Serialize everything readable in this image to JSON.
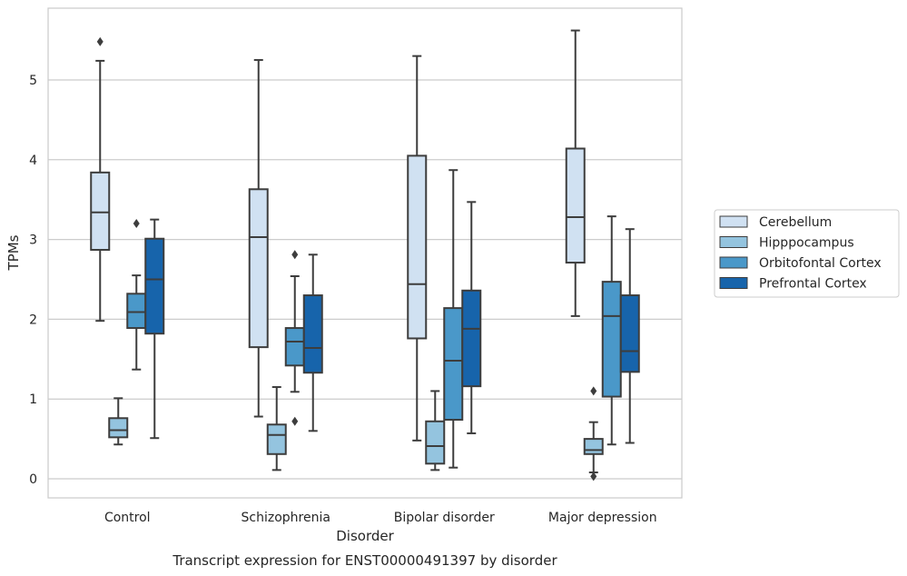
{
  "chart_data": {
    "type": "boxplot",
    "title": "Transcript expression for ENST00000491397 by disorder",
    "xlabel": "Disorder",
    "ylabel": "TPMs",
    "ylim": [
      -0.23,
      5.9
    ],
    "yticks": [
      0,
      1,
      2,
      3,
      4,
      5
    ],
    "grid": "horizontal",
    "legend_position": "right",
    "categories": [
      "Control",
      "Schizophrenia",
      "Bipolar disorder",
      "Major depression"
    ],
    "series": [
      {
        "name": "Cerebellum",
        "color": "#d0e1f2",
        "boxes": [
          {
            "min": 1.98,
            "q1": 2.87,
            "median": 3.34,
            "q3": 3.84,
            "max": 5.24,
            "outliers": [
              5.48
            ]
          },
          {
            "min": 0.78,
            "q1": 1.65,
            "median": 3.03,
            "q3": 3.63,
            "max": 5.25,
            "outliers": []
          },
          {
            "min": 0.48,
            "q1": 1.76,
            "median": 2.44,
            "q3": 4.05,
            "max": 5.3,
            "outliers": []
          },
          {
            "min": 2.04,
            "q1": 2.71,
            "median": 3.28,
            "q3": 4.14,
            "max": 5.62,
            "outliers": []
          }
        ]
      },
      {
        "name": "Hipppocampus",
        "color": "#94c4df",
        "boxes": [
          {
            "min": 0.43,
            "q1": 0.52,
            "median": 0.61,
            "q3": 0.76,
            "max": 1.01,
            "outliers": []
          },
          {
            "min": 0.11,
            "q1": 0.31,
            "median": 0.55,
            "q3": 0.68,
            "max": 1.15,
            "outliers": []
          },
          {
            "min": 0.11,
            "q1": 0.19,
            "median": 0.41,
            "q3": 0.72,
            "max": 1.1,
            "outliers": []
          },
          {
            "min": 0.08,
            "q1": 0.31,
            "median": 0.36,
            "q3": 0.5,
            "max": 0.71,
            "outliers": [
              0.03,
              1.1
            ]
          }
        ]
      },
      {
        "name": "Orbitofontal Cortex",
        "color": "#4a98c9",
        "boxes": [
          {
            "min": 1.37,
            "q1": 1.89,
            "median": 2.09,
            "q3": 2.32,
            "max": 2.55,
            "outliers": [
              3.2
            ]
          },
          {
            "min": 1.09,
            "q1": 1.42,
            "median": 1.72,
            "q3": 1.89,
            "max": 2.54,
            "outliers": [
              0.72,
              2.81
            ]
          },
          {
            "min": 0.14,
            "q1": 0.74,
            "median": 1.48,
            "q3": 2.14,
            "max": 3.87,
            "outliers": []
          },
          {
            "min": 0.43,
            "q1": 1.03,
            "median": 2.04,
            "q3": 2.47,
            "max": 3.29,
            "outliers": []
          }
        ]
      },
      {
        "name": "Prefrontal Cortex",
        "color": "#1764ab",
        "boxes": [
          {
            "min": 0.51,
            "q1": 1.82,
            "median": 2.5,
            "q3": 3.01,
            "max": 3.25,
            "outliers": []
          },
          {
            "min": 0.6,
            "q1": 1.33,
            "median": 1.64,
            "q3": 2.3,
            "max": 2.81,
            "outliers": []
          },
          {
            "min": 0.57,
            "q1": 1.16,
            "median": 1.88,
            "q3": 2.36,
            "max": 3.47,
            "outliers": []
          },
          {
            "min": 0.45,
            "q1": 1.34,
            "median": 1.6,
            "q3": 2.3,
            "max": 3.13,
            "outliers": []
          }
        ]
      }
    ]
  }
}
